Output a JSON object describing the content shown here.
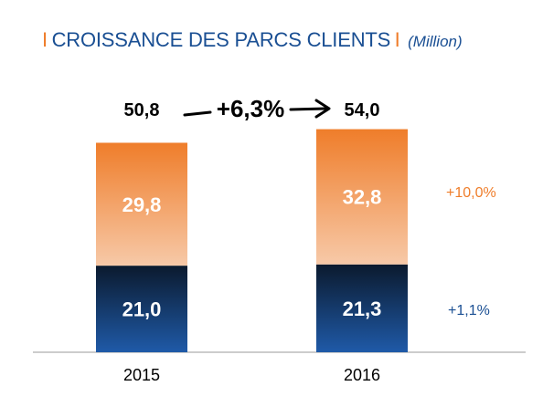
{
  "title": {
    "separator": "I",
    "text": "CROISSANCE DES PARCS CLIENTS",
    "unit": "(Million)"
  },
  "colors": {
    "orange": "#ef7d2a",
    "orange_light": "#f7c9a8",
    "blue": "#1a4f93",
    "navy_dark": "#0b1a2e",
    "title_blue": "#1a4f93"
  },
  "chart_data": {
    "type": "bar",
    "stacked": true,
    "categories": [
      "2015",
      "2016"
    ],
    "series": [
      {
        "values": [
          21.0,
          21.3
        ],
        "labels": [
          "21,0",
          "21,3"
        ],
        "color": "#1a4f93"
      },
      {
        "values": [
          29.8,
          32.8
        ],
        "labels": [
          "29,8",
          "32,8"
        ],
        "color": "#ef7d2a"
      }
    ],
    "totals": [
      50.8,
      54.0
    ],
    "total_labels": [
      "50,8",
      "54,0"
    ],
    "growth_total": "+6,3%",
    "series_growth": [
      "+1,1%",
      "+10,0%"
    ],
    "ylim": [
      0,
      54.0
    ],
    "grid": false,
    "legend": "none"
  }
}
